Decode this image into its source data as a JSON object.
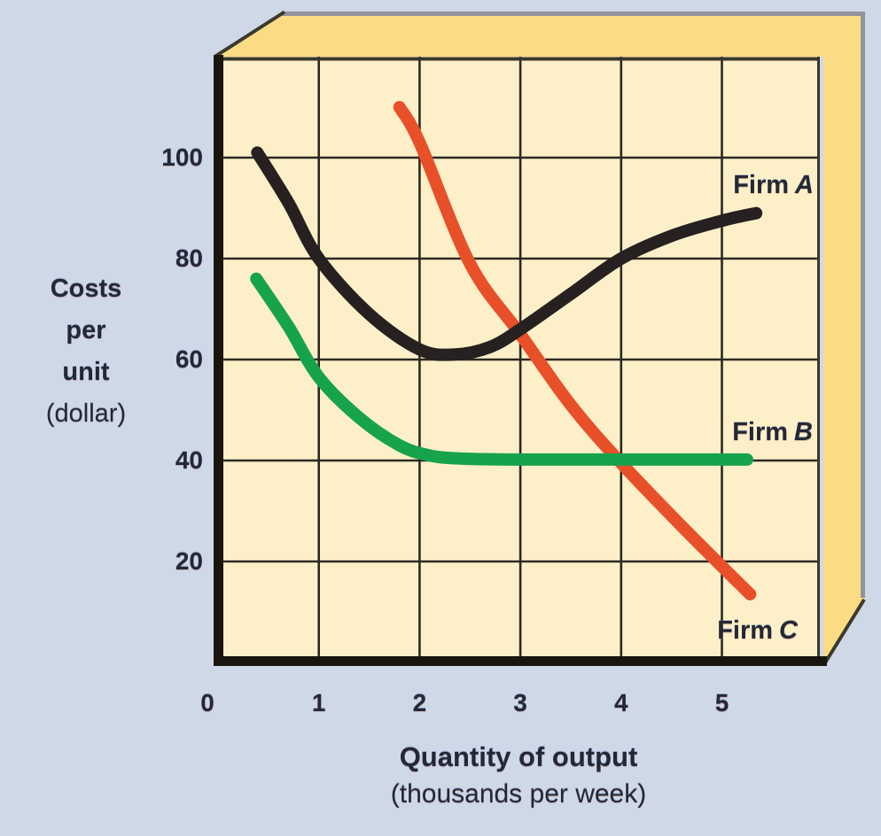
{
  "palette": {
    "page_bg": "#cfd8e7",
    "plot_bg": "#fdf0c9",
    "side_face": "#fbdc85",
    "side_border": "#93939b",
    "bevel": "#3c392e",
    "frame": "#3a372c",
    "grid": "#2c2922",
    "axis": "#18150f",
    "text": "#242836",
    "firm_a_color": "#262120",
    "firm_b_color": "#17a34b",
    "firm_c_color": "#e8502a"
  },
  "chart_data": {
    "type": "line",
    "title": "",
    "xlabel": "Quantity of output",
    "xlabel_sub": "(thousands per week)",
    "ylabel_lines": [
      "Costs",
      "per",
      "unit"
    ],
    "ylabel_sub": "(dollar)",
    "x_ticks": [
      0,
      1,
      2,
      3,
      4,
      5
    ],
    "y_ticks": [
      20,
      40,
      60,
      80,
      100
    ],
    "xlim": [
      0,
      5.97
    ],
    "ylim": [
      0,
      120
    ],
    "grid": true,
    "legend_position": "inline-right",
    "series": [
      {
        "name": "Firm A",
        "label_prefix": "Firm",
        "label_letter": "A",
        "color_key": "firm_a_color",
        "shape": "u-shaped average cost curve",
        "points": [
          [
            0.39,
            101
          ],
          [
            0.7,
            91
          ],
          [
            1,
            80
          ],
          [
            1.5,
            69
          ],
          [
            2,
            62
          ],
          [
            2.35,
            61
          ],
          [
            2.7,
            62.5
          ],
          [
            3,
            66
          ],
          [
            3.5,
            73
          ],
          [
            4,
            80
          ],
          [
            4.5,
            84.5
          ],
          [
            5,
            87.5
          ],
          [
            5.34,
            89
          ]
        ]
      },
      {
        "name": "Firm B",
        "label_prefix": "Firm",
        "label_letter": "B",
        "color_key": "firm_b_color",
        "shape": "declining then constant cost curve",
        "points": [
          [
            0.38,
            76
          ],
          [
            0.7,
            66.5
          ],
          [
            1,
            56.5
          ],
          [
            1.4,
            48.5
          ],
          [
            1.8,
            43
          ],
          [
            2.1,
            41
          ],
          [
            2.4,
            40.4
          ],
          [
            3,
            40.2
          ],
          [
            4,
            40.2
          ],
          [
            5.25,
            40.2
          ]
        ]
      },
      {
        "name": "Firm C",
        "label_prefix": "Firm",
        "label_letter": "C",
        "color_key": "firm_c_color",
        "shape": "continuously declining cost curve",
        "points": [
          [
            1.8,
            110
          ],
          [
            2,
            103
          ],
          [
            2.5,
            79
          ],
          [
            3,
            65
          ],
          [
            3.5,
            51
          ],
          [
            4,
            39.5
          ],
          [
            4.65,
            26
          ],
          [
            5.28,
            13.5
          ]
        ]
      }
    ]
  }
}
